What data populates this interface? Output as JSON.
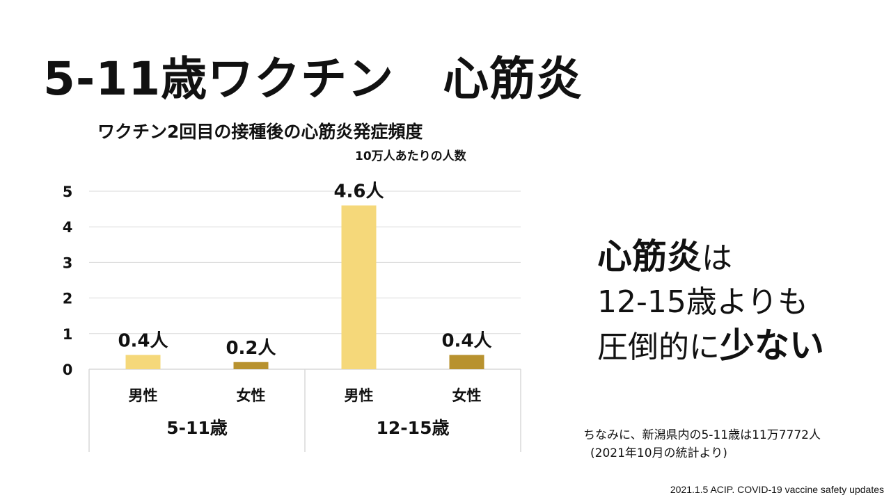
{
  "slide": {
    "title_part1": "5-11歳ワクチン",
    "title_part2": "心筋炎"
  },
  "side_text": {
    "l1_bold": "心筋炎",
    "l1_rest": "は",
    "l2": "12-15歳よりも",
    "l3_normal": "圧倒的に",
    "l3_bold": "少ない"
  },
  "note": {
    "line1": "ちなみに、新潟県内の5-11歳は11万7772人",
    "line2": "(2021年10月の統計より)"
  },
  "source": "2021.1.5 ACIP. COVID-19 vaccine safety updates",
  "chart_data": {
    "type": "bar",
    "title": "ワクチン2回目の接種後の心筋炎発症頻度",
    "subtitle": "10万人あたりの人数",
    "groups": [
      "5-11歳",
      "12-15歳"
    ],
    "categories": [
      "男性",
      "女性",
      "男性",
      "女性"
    ],
    "group_of_category": [
      0,
      0,
      1,
      1
    ],
    "values": [
      0.4,
      0.2,
      4.6,
      0.4
    ],
    "data_labels": [
      "0.4人",
      "0.2人",
      "4.6人",
      "0.4人"
    ],
    "colors": [
      "#F5D87A",
      "#B8922F",
      "#F5D87A",
      "#B8922F"
    ],
    "ylim": [
      0,
      5
    ],
    "yticks": [
      "0",
      "1",
      "2",
      "3",
      "4",
      "5"
    ],
    "grid": true
  }
}
